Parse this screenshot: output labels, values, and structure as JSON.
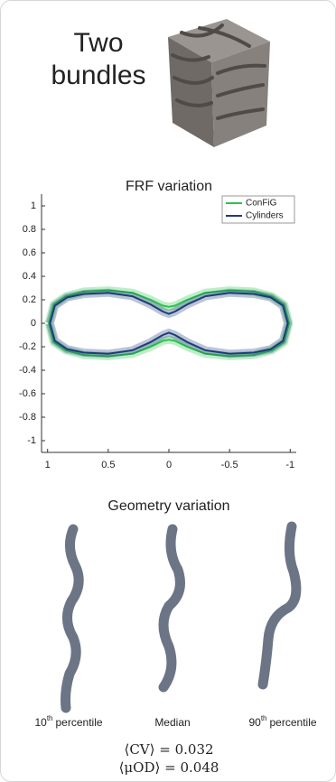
{
  "header": {
    "title": "Two bundles"
  },
  "chart_data": {
    "type": "line",
    "title": "FRF variation",
    "xlim": [
      1.05,
      -1.05
    ],
    "xticks": [
      1,
      0.5,
      0,
      -0.5,
      -1
    ],
    "ylim": [
      -1.1,
      1.1
    ],
    "yticks": [
      -1,
      -0.8,
      -0.6,
      -0.4,
      -0.2,
      0,
      0.2,
      0.4,
      0.6,
      0.8,
      1
    ],
    "legend": "upper right",
    "series": [
      {
        "name": "ConFiG",
        "color": "#2bc44a",
        "x": [
          0.99,
          0.95,
          0.85,
          0.7,
          0.5,
          0.3,
          0.15,
          0.05,
          0,
          -0.05,
          -0.15,
          -0.3,
          -0.5,
          -0.7,
          -0.85,
          -0.95,
          -0.99,
          -0.95,
          -0.85,
          -0.7,
          -0.5,
          -0.3,
          -0.15,
          -0.05,
          0,
          0.05,
          0.15,
          0.3,
          0.5,
          0.7,
          0.85,
          0.95,
          0.99
        ],
        "values": [
          0,
          0.16,
          0.23,
          0.27,
          0.28,
          0.26,
          0.2,
          0.15,
          0.14,
          0.15,
          0.2,
          0.26,
          0.28,
          0.27,
          0.23,
          0.16,
          0,
          -0.16,
          -0.23,
          -0.27,
          -0.28,
          -0.26,
          -0.2,
          -0.15,
          -0.14,
          -0.15,
          -0.2,
          -0.26,
          -0.28,
          -0.27,
          -0.23,
          -0.16,
          0
        ]
      },
      {
        "name": "Cylinders",
        "color": "#1f3a7a",
        "x": [
          0.98,
          0.94,
          0.84,
          0.7,
          0.5,
          0.3,
          0.15,
          0.05,
          0,
          -0.05,
          -0.15,
          -0.3,
          -0.5,
          -0.7,
          -0.84,
          -0.94,
          -0.98,
          -0.94,
          -0.84,
          -0.7,
          -0.5,
          -0.3,
          -0.15,
          -0.05,
          0,
          0.05,
          0.15,
          0.3,
          0.5,
          0.7,
          0.84,
          0.94,
          0.98
        ],
        "values": [
          0,
          0.15,
          0.22,
          0.25,
          0.26,
          0.23,
          0.16,
          0.1,
          0.08,
          0.1,
          0.16,
          0.23,
          0.26,
          0.25,
          0.22,
          0.15,
          0,
          -0.15,
          -0.22,
          -0.25,
          -0.26,
          -0.23,
          -0.16,
          -0.1,
          -0.08,
          -0.1,
          -0.16,
          -0.23,
          -0.26,
          -0.25,
          -0.22,
          -0.15,
          0
        ]
      }
    ]
  },
  "geometry": {
    "title": "Geometry variation",
    "labels": [
      {
        "number": "10",
        "suffix": "th",
        "text": "percentile"
      },
      {
        "text": "Median"
      },
      {
        "number": "90",
        "suffix": "th",
        "text": "percentile"
      }
    ],
    "stats": [
      "⟨CV⟩ = 0.032",
      "⟨μOD⟩ = 0.048"
    ]
  }
}
